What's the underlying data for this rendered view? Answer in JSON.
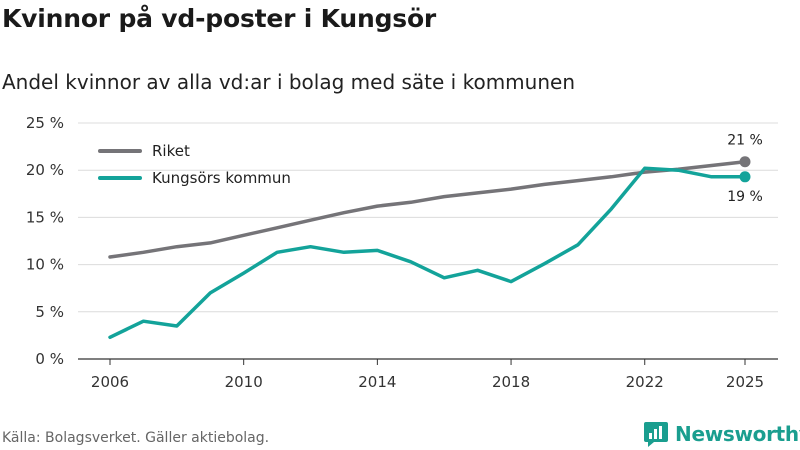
{
  "title": "Kvinnor på vd-poster i Kungsör",
  "subtitle": "Andel kvinnor av alla vd:ar i bolag med säte i kommunen",
  "source": "Källa: Bolagsverket. Gäller aktiebolag.",
  "logo": {
    "text": "Newsworthy",
    "icon": "newsworthy-logo-icon",
    "color": "#1a9e8f"
  },
  "chart_data": {
    "type": "line",
    "title": "Kvinnor på vd-poster i Kungsör",
    "subtitle": "Andel kvinnor av alla vd:ar i bolag med säte i kommunen",
    "xlabel": "",
    "ylabel": "",
    "x": [
      2006,
      2007,
      2008,
      2009,
      2010,
      2011,
      2012,
      2013,
      2014,
      2015,
      2016,
      2017,
      2018,
      2019,
      2020,
      2021,
      2022,
      2023,
      2024,
      2025
    ],
    "xticks": [
      2006,
      2010,
      2014,
      2018,
      2022,
      2025
    ],
    "xlim": [
      2006,
      2025
    ],
    "ylim": [
      0,
      25
    ],
    "yticks": [
      0,
      5,
      10,
      15,
      20,
      25
    ],
    "ytick_labels": [
      "0 %",
      "5 %",
      "10 %",
      "15 %",
      "20 %",
      "25 %"
    ],
    "grid": true,
    "legend_position": "top-left",
    "series": [
      {
        "name": "Riket",
        "color": "#757478",
        "values": [
          10.8,
          11.3,
          11.9,
          12.3,
          13.1,
          13.9,
          14.7,
          15.5,
          16.2,
          16.6,
          17.2,
          17.6,
          18.0,
          18.5,
          18.9,
          19.3,
          19.8,
          20.1,
          20.5,
          20.9
        ],
        "end_label": "21 %"
      },
      {
        "name": "Kungsörs kommun",
        "color": "#13a39a",
        "values": [
          2.3,
          4.0,
          3.5,
          7.0,
          9.1,
          11.3,
          11.9,
          11.3,
          11.5,
          10.3,
          8.6,
          9.4,
          8.2,
          10.1,
          12.1,
          15.9,
          20.2,
          20.0,
          19.3,
          19.3
        ],
        "end_label": "19 %"
      }
    ]
  }
}
